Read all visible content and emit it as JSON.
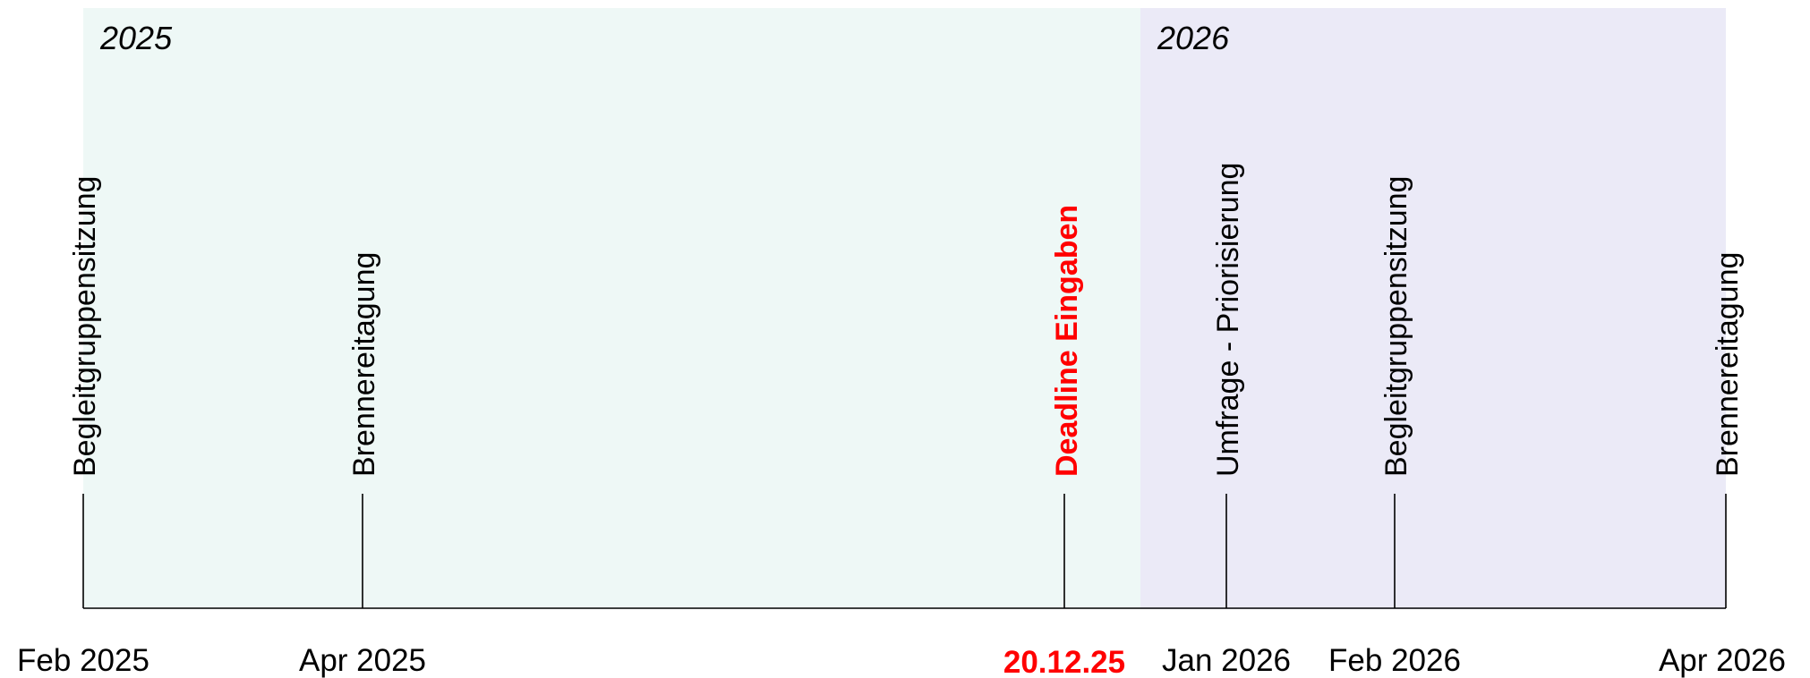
{
  "years": [
    {
      "label": "2025",
      "color": "#eef8f6"
    },
    {
      "label": "2026",
      "color": "#ebeaf7"
    }
  ],
  "highlight_color": "#ff0000",
  "events": [
    {
      "label": "Begleitgruppensitzung",
      "date_label": "Feb 2025",
      "highlight": false
    },
    {
      "label": "Brennereitagung",
      "date_label": "Apr 2025",
      "highlight": false
    },
    {
      "label": "Deadline Eingaben",
      "date_label": "20.12.25",
      "highlight": true
    },
    {
      "label": "Umfrage - Priorisierung",
      "date_label": "Jan 2026",
      "highlight": false
    },
    {
      "label": "Begleitgruppensitzung",
      "date_label": "Feb 2026",
      "highlight": false
    },
    {
      "label": "Brennereitagung",
      "date_label": "Apr 2026",
      "highlight": false
    }
  ]
}
